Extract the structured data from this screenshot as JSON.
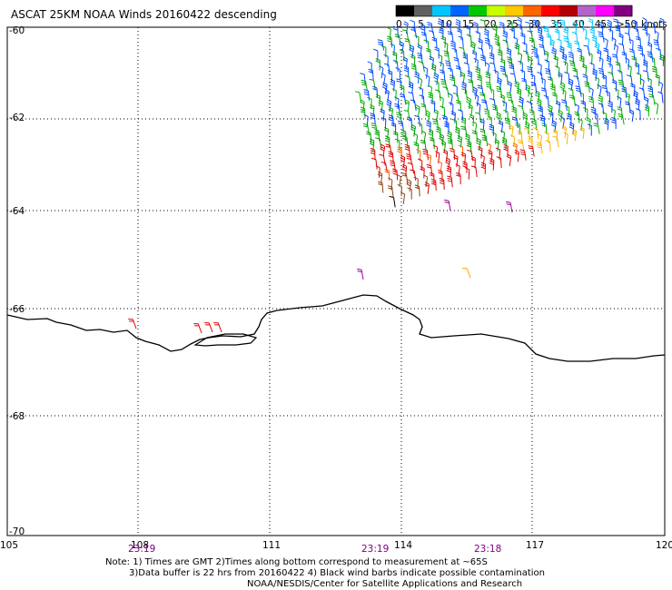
{
  "title": "ASCAT 25KM NOAA Winds 20160422 descending",
  "legend": {
    "unit_label": "knots",
    "labels": [
      "0",
      "5",
      "10",
      "15",
      "20",
      "25",
      "30",
      "35",
      "40",
      "45",
      ">50"
    ],
    "colors": [
      "#000000",
      "#606060",
      "#00c8ff",
      "#0064ff",
      "#00c800",
      "#c8ff00",
      "#ffc800",
      "#ff6400",
      "#ff0000",
      "#b40000",
      "#b464c8",
      "#ff00ff",
      "#800080"
    ]
  },
  "axes": {
    "lon_labels": [
      "105",
      "108",
      "111",
      "114",
      "117",
      "120"
    ],
    "lat_labels": [
      "-60",
      "-62",
      "-64",
      "-66",
      "-68",
      "-70"
    ]
  },
  "times": [
    "23:19",
    "23:19",
    "23:18"
  ],
  "notes": [
    "Note: 1) Times are GMT 2)Times along bottom correspond to measurement at ~65S",
    "3)Data buffer is 22 hrs from 20160422 4) Black wind barbs indicate possible contamination",
    "NOAA/NESDIS/Center for Satellite Applications and Research"
  ]
}
